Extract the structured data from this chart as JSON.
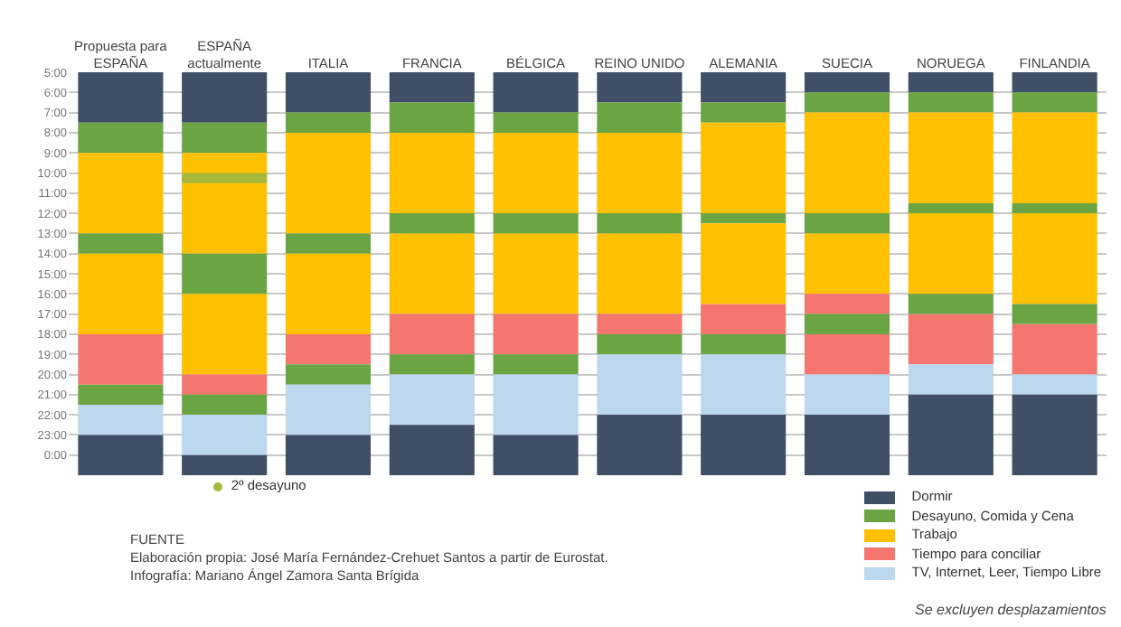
{
  "chart_data": {
    "type": "bar",
    "categories": [
      "Propuesta para ESPAÑA",
      "ESPAÑA actualmente",
      "ITALIA",
      "FRANCIA",
      "BÉLGICA",
      "REINO UNIDO",
      "ALEMANIA",
      "SUECIA",
      "NORUEGA",
      "FINLANDIA"
    ],
    "series": [
      {
        "name": "Dormir",
        "color": "#3f4f66",
        "base": [
          5,
          5,
          5,
          5,
          5,
          5,
          5,
          5,
          5,
          5
        ],
        "values": [
          2.5,
          2.5,
          2,
          1.5,
          2,
          1.5,
          1.5,
          1,
          1,
          1
        ]
      },
      {
        "name": "Desayuno, Comida y Cena",
        "color": "#6aa443",
        "base": [
          7.5,
          7.5,
          7,
          6.5,
          7,
          6.5,
          6.5,
          6,
          6,
          6
        ],
        "values": [
          1.5,
          1.5,
          1,
          1.5,
          1,
          1.5,
          1,
          1,
          1,
          1
        ]
      },
      {
        "name": "Trabajo",
        "color": "#ffc000",
        "base": [
          9,
          9,
          8,
          8,
          8,
          8,
          7.5,
          7,
          7,
          7
        ],
        "values": [
          4,
          5,
          5,
          4,
          4,
          4,
          4.5,
          5,
          4.5,
          4.5
        ]
      },
      {
        "color": "#6aa443",
        "base": [
          13,
          14,
          13,
          12,
          12,
          12,
          12,
          12,
          11.5,
          11.5
        ],
        "values": [
          1,
          2,
          1,
          1,
          1,
          1,
          0.5,
          1,
          0.5,
          0.5
        ]
      },
      {
        "color": "#ffc000",
        "base": [
          14,
          16,
          14,
          13,
          13,
          13,
          12.5,
          13,
          12,
          12
        ],
        "values": [
          4,
          4,
          4,
          4,
          4,
          4,
          4,
          3,
          4,
          4.5
        ]
      },
      {
        "name": "Tiempo para conciliar",
        "color": "#f4766f",
        "base": [
          18,
          20,
          18,
          17,
          17,
          17,
          16.5,
          16,
          17,
          17.5
        ],
        "values": [
          2.5,
          1,
          1.5,
          2,
          2,
          1,
          1.5,
          1,
          2.5,
          2.5
        ]
      },
      {
        "color": "#6aa443",
        "base": [
          20.5,
          21,
          19.5,
          19,
          19,
          18,
          18,
          17,
          16,
          16.5
        ],
        "values": [
          1,
          1,
          1,
          1,
          1,
          1,
          1,
          1,
          1,
          1
        ]
      },
      {
        "color": "#f4766f",
        "base": [
          null,
          null,
          null,
          null,
          null,
          null,
          null,
          18,
          null,
          null
        ],
        "values": [
          null,
          null,
          null,
          null,
          null,
          null,
          null,
          2,
          null,
          null
        ]
      },
      {
        "name": "TV, Internet, Leer, Tiempo Libre",
        "color": "#bdd7ee",
        "base": [
          21.5,
          22,
          20.5,
          20,
          20,
          19,
          19,
          20,
          19.5,
          20
        ],
        "values": [
          1.5,
          2,
          2.5,
          2.5,
          3,
          3,
          3,
          2,
          1.5,
          1
        ]
      },
      {
        "color": "#3f4f66",
        "base": [
          23,
          24,
          23,
          22.5,
          23,
          22,
          22,
          22,
          21,
          21
        ],
        "values": [
          2,
          1,
          2,
          2.5,
          2,
          3,
          3,
          3,
          4,
          4
        ]
      },
      {
        "name": "2º desayuno",
        "color": "#a8b83a",
        "base": [
          null,
          10,
          null,
          null,
          null,
          null,
          null,
          null,
          null,
          null
        ],
        "values": [
          null,
          0.5,
          null,
          null,
          null,
          null,
          null,
          null,
          null,
          null
        ]
      }
    ],
    "ylim": [
      25,
      5
    ],
    "yticks": [
      {
        "value": 5,
        "label": "5:00"
      },
      {
        "value": 6,
        "label": "6:00"
      },
      {
        "value": 7,
        "label": "7:00"
      },
      {
        "value": 8,
        "label": "8:00"
      },
      {
        "value": 9,
        "label": "9:00"
      },
      {
        "value": 10,
        "label": "10:00"
      },
      {
        "value": 11,
        "label": "11:00"
      },
      {
        "value": 12,
        "label": "12:00"
      },
      {
        "value": 13,
        "label": "13:00"
      },
      {
        "value": 14,
        "label": "14:00"
      },
      {
        "value": 15,
        "label": "15:00"
      },
      {
        "value": 16,
        "label": "16:00"
      },
      {
        "value": 17,
        "label": "17:00"
      },
      {
        "value": 18,
        "label": "18:00"
      },
      {
        "value": 19,
        "label": "19:00"
      },
      {
        "value": 20,
        "label": "20:00"
      },
      {
        "value": 21,
        "label": "21:00"
      },
      {
        "value": 22,
        "label": "22:00"
      },
      {
        "value": 23,
        "label": "23:00"
      },
      {
        "value": 24,
        "label": "0:00"
      }
    ],
    "grid": "y",
    "legend": "bottom right",
    "annotations": [
      "FUENTE",
      "Elaboración propia: José María Fernández-Crehuet Santos a partir de Eurostat.",
      "Infografía: Mariano Ángel Zamora Santa Brígida",
      "Se excluyen desplazamientos"
    ]
  }
}
